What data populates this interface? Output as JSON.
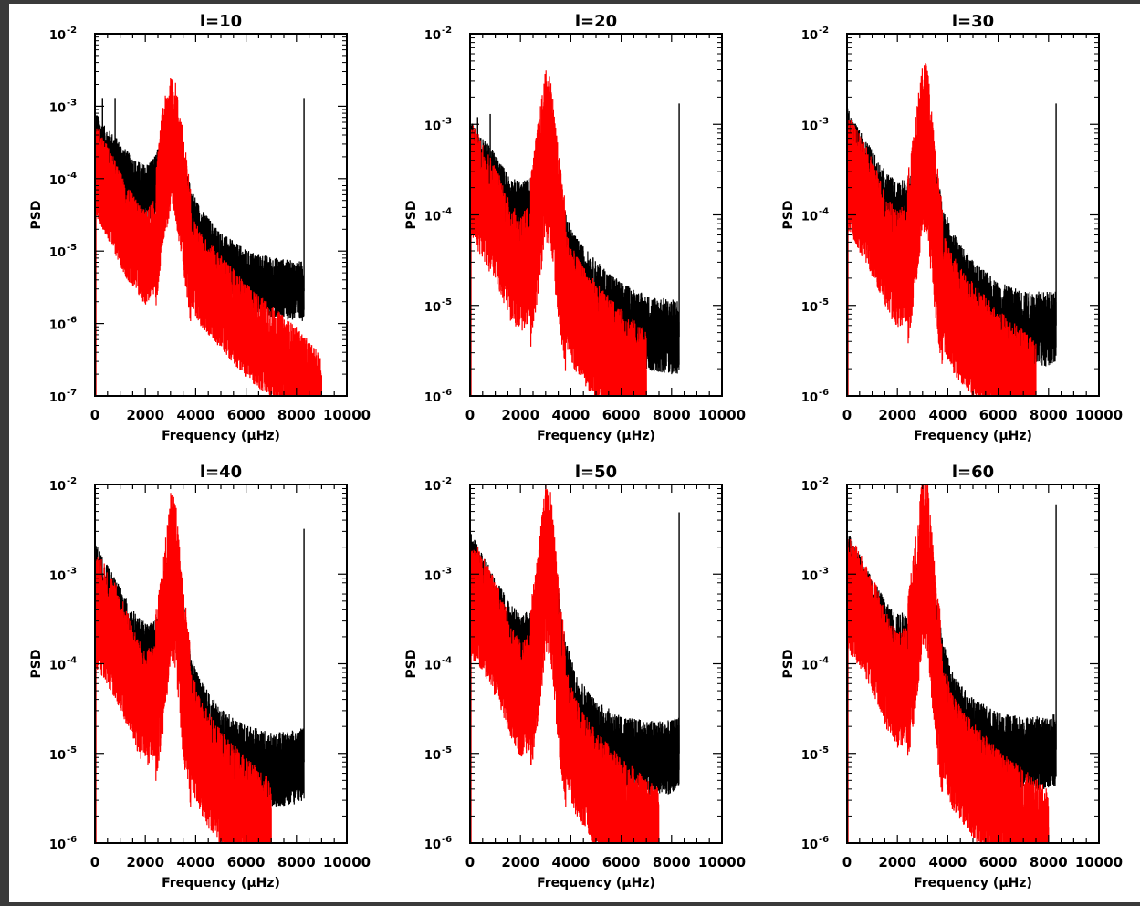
{
  "chart_data": [
    {
      "type": "line",
      "title": "l=10",
      "xlabel": "Frequency (μHz)",
      "ylabel": "PSD",
      "xlim": [
        0,
        10000
      ],
      "ylim": [
        1e-07,
        0.01
      ],
      "yscale": "log",
      "xticks": [
        "0",
        "2000",
        "4000",
        "6000",
        "8000",
        "10000"
      ],
      "yticks": [
        {
          "base": "10",
          "exp": "-7"
        },
        {
          "base": "10",
          "exp": "-6"
        },
        {
          "base": "10",
          "exp": "-5"
        },
        {
          "base": "10",
          "exp": "-4"
        },
        {
          "base": "10",
          "exp": "-3"
        },
        {
          "base": "10",
          "exp": "-2"
        }
      ],
      "series": [
        {
          "color": "#000000",
          "x": [
            0,
            300,
            800,
            1200,
            1600,
            2000,
            2400,
            2700,
            3000,
            3200,
            3500,
            3800,
            4200,
            5000,
            6000,
            7000,
            8000,
            8300
          ],
          "y": [
            0.00035,
            0.00022,
            0.00015,
            0.0001,
            7e-05,
            6e-05,
            8e-05,
            0.00017,
            0.00028,
            0.00024,
            8e-05,
            3e-05,
            1.5e-05,
            7e-06,
            4e-06,
            3.2e-06,
            2.8e-06,
            2.8e-06
          ],
          "spikes": [
            {
              "x": 100,
              "y": 0.0005
            },
            {
              "x": 300,
              "y": 0.0013
            },
            {
              "x": 800,
              "y": 0.0013
            },
            {
              "x": 3200,
              "y": 0.0004
            },
            {
              "x": 8300,
              "y": 0.0013
            }
          ]
        },
        {
          "color": "#ff0000",
          "x": [
            0,
            300,
            800,
            1200,
            1600,
            2000,
            2400,
            2700,
            3000,
            3200,
            3500,
            3800,
            4200,
            5000,
            6000,
            7000,
            8000,
            9000
          ],
          "y": [
            0.00015,
            9e-05,
            4e-05,
            2e-05,
            1.2e-05,
            8e-06,
            1.2e-05,
            0.00012,
            0.00028,
            0.00024,
            5e-05,
            8e-06,
            4e-06,
            2e-06,
            8e-07,
            4e-07,
            2e-07,
            8e-08
          ]
        }
      ]
    },
    {
      "type": "line",
      "title": "l=20",
      "xlabel": "Frequency (μHz)",
      "ylabel": "PSD",
      "xlim": [
        0,
        10000
      ],
      "ylim": [
        1e-06,
        0.01
      ],
      "yscale": "log",
      "xticks": [
        "0",
        "2000",
        "4000",
        "6000",
        "8000",
        "10000"
      ],
      "yticks": [
        {
          "base": "10",
          "exp": "-6"
        },
        {
          "base": "10",
          "exp": "-5"
        },
        {
          "base": "10",
          "exp": "-4"
        },
        {
          "base": "10",
          "exp": "-3"
        },
        {
          "base": "10",
          "exp": "-2"
        }
      ],
      "series": [
        {
          "color": "#000000",
          "x": [
            0,
            300,
            800,
            1200,
            1600,
            2000,
            2400,
            2700,
            3000,
            3200,
            3500,
            3800,
            4200,
            5000,
            6000,
            7000,
            8000,
            8300
          ],
          "y": [
            0.00045,
            0.00032,
            0.00022,
            0.00015,
            0.0001,
            9e-05,
            0.0001,
            0.0002,
            0.00045,
            0.0004,
            0.00012,
            4e-05,
            2.2e-05,
            1.2e-05,
            7e-06,
            5e-06,
            4.5e-06,
            4.5e-06
          ],
          "spikes": [
            {
              "x": 100,
              "y": 0.0005
            },
            {
              "x": 300,
              "y": 0.0012
            },
            {
              "x": 800,
              "y": 0.0013
            },
            {
              "x": 3100,
              "y": 0.0009
            },
            {
              "x": 8300,
              "y": 0.0017
            }
          ]
        },
        {
          "color": "#ff0000",
          "x": [
            0,
            300,
            800,
            1200,
            1600,
            2000,
            2400,
            2700,
            3000,
            3200,
            3500,
            3800,
            4200,
            5000,
            6000,
            7000
          ],
          "y": [
            0.00025,
            0.00018,
            0.0001,
            6e-05,
            3e-05,
            2.2e-05,
            3e-05,
            0.00012,
            0.00045,
            0.0004,
            6e-05,
            1.5e-05,
            8e-06,
            4e-06,
            2e-06,
            1.2e-06
          ]
        }
      ]
    },
    {
      "type": "line",
      "title": "l=30",
      "xlabel": "Frequency (μHz)",
      "ylabel": "PSD",
      "xlim": [
        0,
        10000
      ],
      "ylim": [
        1e-06,
        0.01
      ],
      "yscale": "log",
      "xticks": [
        "0",
        "2000",
        "4000",
        "6000",
        "8000",
        "10000"
      ],
      "yticks": [
        {
          "base": "10",
          "exp": "-6"
        },
        {
          "base": "10",
          "exp": "-5"
        },
        {
          "base": "10",
          "exp": "-4"
        },
        {
          "base": "10",
          "exp": "-3"
        },
        {
          "base": "10",
          "exp": "-2"
        }
      ],
      "series": [
        {
          "color": "#000000",
          "x": [
            0,
            300,
            800,
            1200,
            1600,
            2000,
            2400,
            2700,
            3000,
            3200,
            3500,
            3800,
            4200,
            5000,
            6000,
            7000,
            8000,
            8300
          ],
          "y": [
            0.0006,
            0.0004,
            0.00025,
            0.00016,
            0.00011,
            9e-05,
            0.0001,
            0.0002,
            0.0006,
            0.0005,
            0.00015,
            5e-05,
            2.5e-05,
            1.2e-05,
            7e-06,
            5.5e-06,
            5.5e-06,
            6e-06
          ],
          "spikes": [
            {
              "x": 100,
              "y": 0.0009
            },
            {
              "x": 3100,
              "y": 0.0013
            },
            {
              "x": 8300,
              "y": 0.0017
            }
          ]
        },
        {
          "color": "#ff0000",
          "x": [
            0,
            300,
            800,
            1200,
            1600,
            2000,
            2400,
            2700,
            3000,
            3200,
            3500,
            3800,
            4200,
            5000,
            6000,
            7000,
            7500
          ],
          "y": [
            0.0003,
            0.00022,
            0.00012,
            7e-05,
            3.5e-05,
            2.5e-05,
            3e-05,
            0.00012,
            0.0006,
            0.0005,
            6e-05,
            1.5e-05,
            8e-06,
            4e-06,
            2e-06,
            1.2e-06,
            9e-07
          ]
        }
      ]
    },
    {
      "type": "line",
      "title": "l=40",
      "xlabel": "Frequency (μHz)",
      "ylabel": "PSD",
      "xlim": [
        0,
        10000
      ],
      "ylim": [
        1e-06,
        0.01
      ],
      "yscale": "log",
      "xticks": [
        "0",
        "2000",
        "4000",
        "6000",
        "8000",
        "10000"
      ],
      "yticks": [
        {
          "base": "10",
          "exp": "-6"
        },
        {
          "base": "10",
          "exp": "-5"
        },
        {
          "base": "10",
          "exp": "-4"
        },
        {
          "base": "10",
          "exp": "-3"
        },
        {
          "base": "10",
          "exp": "-2"
        }
      ],
      "series": [
        {
          "color": "#000000",
          "x": [
            0,
            300,
            800,
            1200,
            1600,
            2000,
            2400,
            2700,
            3000,
            3200,
            3500,
            3800,
            4200,
            5000,
            6000,
            7000,
            8000,
            8300
          ],
          "y": [
            0.0009,
            0.0006,
            0.00035,
            0.00022,
            0.00014,
            0.00011,
            0.00012,
            0.0003,
            0.0009,
            0.0008,
            0.0002,
            5e-05,
            2.5e-05,
            1.2e-05,
            8e-06,
            6.5e-06,
            7e-06,
            8e-06
          ],
          "spikes": [
            {
              "x": 100,
              "y": 0.0011
            },
            {
              "x": 3100,
              "y": 0.0013
            },
            {
              "x": 8300,
              "y": 0.0032
            }
          ]
        },
        {
          "color": "#ff0000",
          "x": [
            0,
            300,
            800,
            1200,
            1600,
            2000,
            2400,
            2700,
            3000,
            3200,
            3500,
            3800,
            4200,
            5000,
            6000,
            7000
          ],
          "y": [
            0.0004,
            0.00032,
            0.00018,
            0.0001,
            5e-05,
            3e-05,
            4e-05,
            0.00015,
            0.0009,
            0.0008,
            8e-05,
            2e-05,
            9e-06,
            4e-06,
            2e-06,
            1.1e-06
          ]
        }
      ]
    },
    {
      "type": "line",
      "title": "l=50",
      "xlabel": "Frequency (μHz)",
      "ylabel": "PSD",
      "xlim": [
        0,
        10000
      ],
      "ylim": [
        1e-06,
        0.01
      ],
      "yscale": "log",
      "xticks": [
        "0",
        "2000",
        "4000",
        "6000",
        "8000",
        "10000"
      ],
      "yticks": [
        {
          "base": "10",
          "exp": "-6"
        },
        {
          "base": "10",
          "exp": "-5"
        },
        {
          "base": "10",
          "exp": "-4"
        },
        {
          "base": "10",
          "exp": "-3"
        },
        {
          "base": "10",
          "exp": "-2"
        }
      ],
      "series": [
        {
          "color": "#000000",
          "x": [
            0,
            300,
            800,
            1200,
            1600,
            2000,
            2400,
            2700,
            3000,
            3200,
            3500,
            3800,
            4200,
            5000,
            6000,
            7000,
            8000,
            8300
          ],
          "y": [
            0.0012,
            0.0008,
            0.00045,
            0.00028,
            0.00018,
            0.00014,
            0.00015,
            0.0004,
            0.0012,
            0.001,
            0.00025,
            7e-05,
            3e-05,
            1.5e-05,
            1e-05,
            9e-06,
            9e-06,
            1e-05
          ],
          "spikes": [
            {
              "x": 100,
              "y": 0.0016
            },
            {
              "x": 3100,
              "y": 0.0017
            },
            {
              "x": 8300,
              "y": 0.0049
            }
          ]
        },
        {
          "color": "#ff0000",
          "x": [
            0,
            300,
            800,
            1200,
            1600,
            2000,
            2400,
            2700,
            3000,
            3200,
            3500,
            3800,
            4200,
            5000,
            6000,
            7000,
            7500
          ],
          "y": [
            0.0005,
            0.00045,
            0.00025,
            0.00014,
            7e-05,
            4e-05,
            5e-05,
            0.0002,
            0.0012,
            0.001,
            0.0001,
            2e-05,
            9e-06,
            4e-06,
            2e-06,
            1.2e-06,
            9e-07
          ]
        }
      ]
    },
    {
      "type": "line",
      "title": "l=60",
      "xlabel": "Frequency (μHz)",
      "ylabel": "PSD",
      "xlim": [
        0,
        10000
      ],
      "ylim": [
        1e-06,
        0.01
      ],
      "yscale": "log",
      "xticks": [
        "0",
        "2000",
        "4000",
        "6000",
        "8000",
        "10000"
      ],
      "yticks": [
        {
          "base": "10",
          "exp": "-6"
        },
        {
          "base": "10",
          "exp": "-5"
        },
        {
          "base": "10",
          "exp": "-4"
        },
        {
          "base": "10",
          "exp": "-3"
        },
        {
          "base": "10",
          "exp": "-2"
        }
      ],
      "series": [
        {
          "color": "#000000",
          "x": [
            0,
            300,
            800,
            1200,
            1600,
            2000,
            2400,
            2700,
            3000,
            3200,
            3500,
            3800,
            4200,
            5000,
            6000,
            7000,
            8000,
            8300
          ],
          "y": [
            0.0012,
            0.0008,
            0.00045,
            0.00028,
            0.00018,
            0.00014,
            0.00015,
            0.0004,
            0.0013,
            0.0011,
            0.00025,
            7e-05,
            3e-05,
            1.6e-05,
            1.1e-05,
            1e-05,
            1e-05,
            1.1e-05
          ],
          "spikes": [
            {
              "x": 100,
              "y": 0.0018
            },
            {
              "x": 3100,
              "y": 0.0018
            },
            {
              "x": 8300,
              "y": 0.006
            }
          ]
        },
        {
          "color": "#ff0000",
          "x": [
            0,
            300,
            800,
            1200,
            1600,
            2000,
            2400,
            2700,
            3000,
            3200,
            3500,
            3800,
            4200,
            5000,
            6000,
            7000,
            8000
          ],
          "y": [
            0.0006,
            0.0005,
            0.00028,
            0.00016,
            8e-05,
            5e-05,
            6e-05,
            0.00025,
            0.0014,
            0.0012,
            0.00012,
            2.5e-05,
            1e-05,
            5e-06,
            2.5e-06,
            1.5e-06,
            9e-07
          ]
        }
      ]
    }
  ]
}
